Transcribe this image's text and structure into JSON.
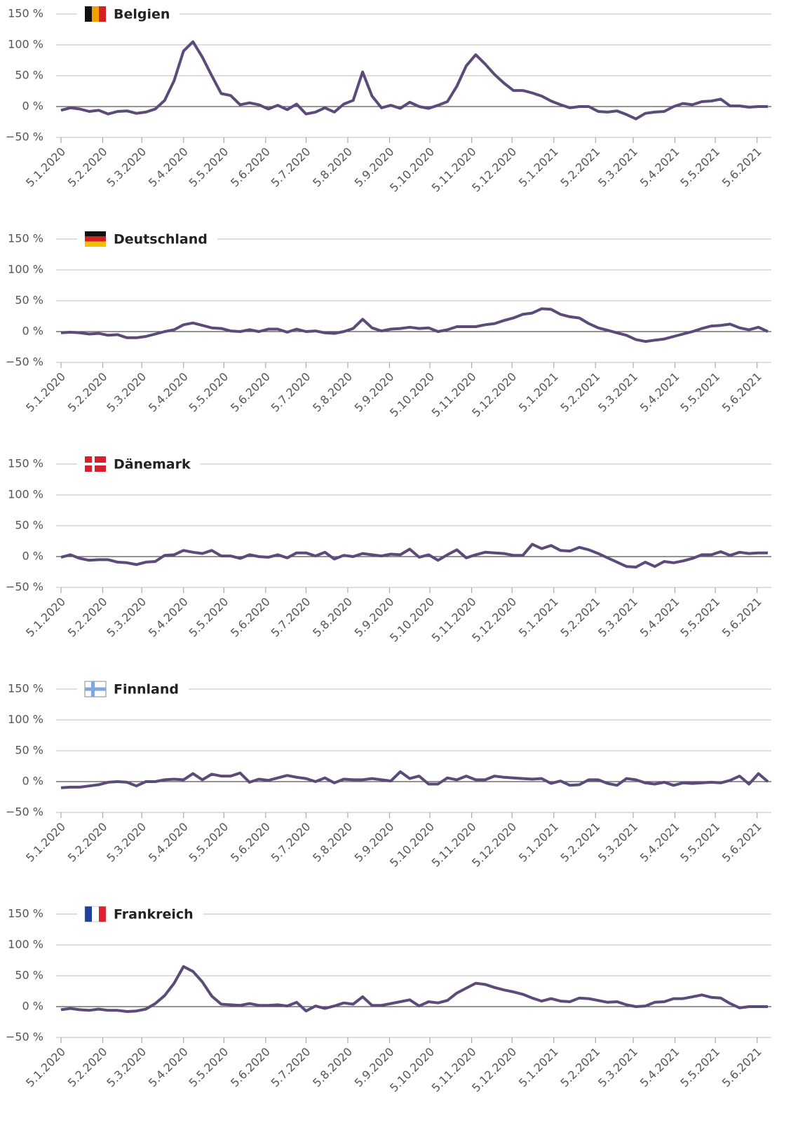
{
  "chart_data": {
    "type": "line",
    "x": [
      "5.1.2020",
      "12.1.2020",
      "19.1.2020",
      "26.1.2020",
      "2.2.2020",
      "9.2.2020",
      "16.2.2020",
      "23.2.2020",
      "1.3.2020",
      "8.3.2020",
      "15.3.2020",
      "22.3.2020",
      "29.3.2020",
      "5.4.2020",
      "12.4.2020",
      "19.4.2020",
      "26.4.2020",
      "3.5.2020",
      "10.5.2020",
      "17.5.2020",
      "24.5.2020",
      "31.5.2020",
      "7.6.2020",
      "14.6.2020",
      "21.6.2020",
      "28.6.2020",
      "5.7.2020",
      "12.7.2020",
      "19.7.2020",
      "26.7.2020",
      "2.8.2020",
      "9.8.2020",
      "16.8.2020",
      "23.8.2020",
      "30.8.2020",
      "6.9.2020",
      "13.9.2020",
      "20.9.2020",
      "27.9.2020",
      "4.10.2020",
      "11.10.2020",
      "18.10.2020",
      "25.10.2020",
      "1.11.2020",
      "8.11.2020",
      "15.11.2020",
      "22.11.2020",
      "29.11.2020",
      "6.12.2020",
      "13.12.2020",
      "20.12.2020",
      "27.12.2020",
      "3.1.2021",
      "10.1.2021",
      "17.1.2021",
      "24.1.2021",
      "31.1.2021",
      "7.2.2021",
      "14.2.2021",
      "21.2.2021",
      "28.2.2021",
      "7.3.2021",
      "14.3.2021",
      "21.3.2021",
      "28.3.2021",
      "4.4.2021",
      "11.4.2021",
      "18.4.2021",
      "25.4.2021",
      "2.5.2021",
      "9.5.2021",
      "16.5.2021",
      "23.5.2021",
      "30.5.2021",
      "6.6.2021",
      "13.6.2021"
    ],
    "xlim": [
      "5.1.2020",
      "13.6.2021"
    ],
    "xticks": [
      "5.1.2020",
      "5.2.2020",
      "5.3.2020",
      "5.4.2020",
      "5.5.2020",
      "5.6.2020",
      "5.7.2020",
      "5.8.2020",
      "5.9.2020",
      "5.10.2020",
      "5.11.2020",
      "5.12.2020",
      "5.1.2021",
      "5.2.2021",
      "5.3.2021",
      "5.4.2021",
      "5.5.2021",
      "5.6.2021"
    ],
    "ylim": [
      -50,
      150
    ],
    "yticks": [
      {
        "value": -50,
        "label": "−50 %"
      },
      {
        "value": 0,
        "label": "0 %"
      },
      {
        "value": 50,
        "label": "50 %"
      },
      {
        "value": 100,
        "label": "100 %"
      },
      {
        "value": 150,
        "label": "150 %"
      }
    ],
    "grid": true,
    "series": [
      {
        "name": "Belgien",
        "color": "#5b4a7a",
        "values": [
          -6,
          -2,
          -4,
          -8,
          -6,
          -12,
          -8,
          -7,
          -11,
          -9,
          -4,
          10,
          42,
          90,
          105,
          80,
          50,
          21,
          18,
          3,
          6,
          3,
          -4,
          2,
          -5,
          4,
          -12,
          -9,
          -2,
          -9,
          4,
          10,
          56,
          17,
          -2,
          2,
          -3,
          7,
          0,
          -3,
          2,
          8,
          33,
          66,
          84,
          69,
          52,
          38,
          26,
          26,
          22,
          17,
          9,
          3,
          -2,
          0,
          0,
          -8,
          -9,
          -7,
          -13,
          -20,
          -11,
          -9,
          -8,
          0,
          5,
          3,
          8,
          9,
          12,
          1,
          1,
          -1,
          0,
          0
        ]
      },
      {
        "name": "Deutschland",
        "color": "#5b4a7a",
        "values": [
          -2,
          -1,
          -2,
          -4,
          -3,
          -6,
          -5,
          -10,
          -10,
          -8,
          -4,
          0,
          3,
          11,
          14,
          10,
          6,
          5,
          1,
          0,
          3,
          0,
          4,
          4,
          -1,
          4,
          0,
          1,
          -2,
          -3,
          0,
          5,
          20,
          6,
          1,
          4,
          5,
          7,
          5,
          6,
          0,
          3,
          8,
          8,
          8,
          11,
          13,
          18,
          22,
          28,
          30,
          37,
          36,
          28,
          24,
          22,
          13,
          6,
          2,
          -2,
          -6,
          -13,
          -16,
          -14,
          -12,
          -8,
          -4,
          0,
          5,
          9,
          10,
          12,
          6,
          3,
          7,
          0
        ]
      },
      {
        "name": "Dänemark",
        "color": "#5b4a7a",
        "values": [
          -1,
          3,
          -3,
          -6,
          -5,
          -5,
          -9,
          -10,
          -13,
          -9,
          -8,
          2,
          3,
          10,
          7,
          5,
          10,
          1,
          1,
          -3,
          3,
          0,
          -1,
          3,
          -2,
          6,
          6,
          1,
          7,
          -4,
          2,
          0,
          5,
          3,
          1,
          4,
          3,
          12,
          -1,
          3,
          -6,
          3,
          11,
          -2,
          3,
          7,
          6,
          5,
          2,
          2,
          20,
          13,
          18,
          10,
          9,
          15,
          11,
          5,
          -2,
          -9,
          -16,
          -17,
          -9,
          -16,
          -8,
          -10,
          -7,
          -3,
          3,
          3,
          8,
          2,
          7,
          5,
          6,
          6
        ]
      },
      {
        "name": "Finnland",
        "color": "#5b4a7a",
        "values": [
          -10,
          -9,
          -9,
          -7,
          -5,
          -1,
          0,
          -1,
          -7,
          0,
          0,
          3,
          4,
          3,
          13,
          3,
          12,
          9,
          9,
          14,
          -1,
          4,
          2,
          6,
          10,
          7,
          5,
          0,
          6,
          -2,
          4,
          3,
          3,
          5,
          3,
          1,
          16,
          5,
          9,
          -4,
          -4,
          6,
          3,
          9,
          3,
          3,
          9,
          7,
          6,
          5,
          4,
          5,
          -3,
          1,
          -6,
          -5,
          3,
          3,
          -3,
          -6,
          5,
          3,
          -2,
          -4,
          -1,
          -6,
          -2,
          -3,
          -2,
          -1,
          -2,
          2,
          9,
          -4,
          13,
          0
        ]
      },
      {
        "name": "Frankreich",
        "color": "#5b4a7a",
        "values": [
          -5,
          -3,
          -5,
          -6,
          -4,
          -6,
          -6,
          -8,
          -7,
          -4,
          5,
          18,
          38,
          65,
          57,
          40,
          17,
          4,
          3,
          2,
          5,
          2,
          2,
          3,
          1,
          7,
          -7,
          1,
          -3,
          1,
          6,
          4,
          16,
          2,
          2,
          5,
          8,
          11,
          1,
          8,
          6,
          10,
          22,
          30,
          38,
          36,
          31,
          27,
          24,
          20,
          14,
          9,
          13,
          9,
          8,
          14,
          13,
          10,
          7,
          8,
          3,
          0,
          1,
          7,
          8,
          13,
          13,
          16,
          19,
          15,
          14,
          5,
          -2,
          0,
          0,
          0
        ]
      }
    ]
  }
}
